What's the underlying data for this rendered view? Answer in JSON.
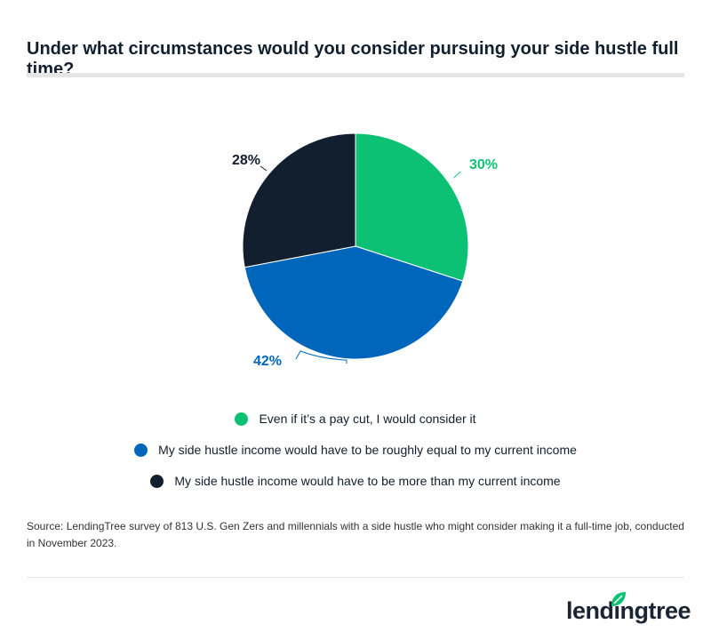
{
  "title": "Under what circumstances would you consider pursuing your side hustle full time?",
  "chart_data": {
    "type": "pie",
    "start": "top",
    "direction": "clockwise",
    "slices": [
      {
        "label": "Even if it’s a pay cut, I would consider it",
        "value": 30,
        "data_label": "30%",
        "color": "#0dc174"
      },
      {
        "label": "My side hustle income would have to be roughly equal to my current income",
        "value": 42,
        "data_label": "42%",
        "color": "#0066bb"
      },
      {
        "label": "My side hustle income would have to be more than my current income",
        "value": 28,
        "data_label": "28%",
        "color": "#121f2e"
      }
    ],
    "legend_position": "bottom"
  },
  "source": "Source: LendingTree survey of 813 U.S. Gen Zers and millennials with a side hustle who might consider making it a full-time job, conducted in November 2023.",
  "logo": {
    "text": "lendingtree",
    "icon": "leaf-icon"
  }
}
